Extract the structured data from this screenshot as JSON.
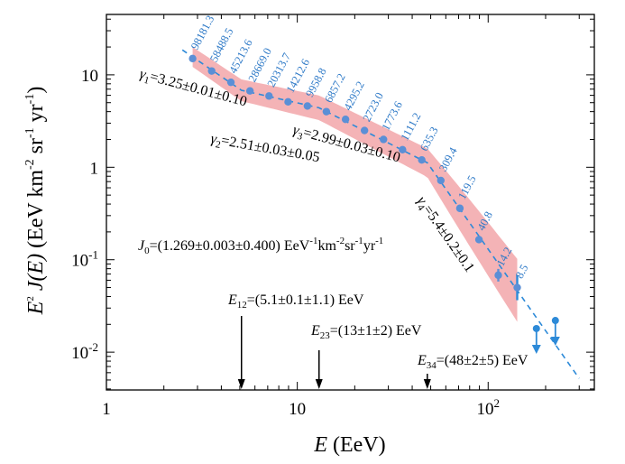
{
  "chart_data": {
    "type": "scatter",
    "xlabel": {
      "pre": "E",
      "unit": " (EeV)"
    },
    "ylabel": {
      "pre": "E",
      "exp": "2",
      "mid": " J(E)",
      "unit": " (EeV km",
      "e1": "-2",
      "u2": " sr",
      "e2": "-1",
      "u3": " yr",
      "e3": "-1",
      "close": ")"
    },
    "x_scale": "log",
    "y_scale": "log",
    "xlim": [
      1,
      360
    ],
    "ylim": [
      0.0039,
      45
    ],
    "x_ticks": [
      {
        "value": 1,
        "base": "1",
        "exp": ""
      },
      {
        "value": 10,
        "base": "10",
        "exp": ""
      },
      {
        "value": 100,
        "base": "10",
        "exp": "2"
      }
    ],
    "y_ticks": [
      {
        "value": 0.01,
        "base": "10",
        "exp": "-2"
      },
      {
        "value": 0.1,
        "base": "10",
        "exp": "-1"
      },
      {
        "value": 1,
        "base": "1",
        "exp": ""
      },
      {
        "value": 10,
        "base": "10",
        "exp": ""
      }
    ],
    "grid": false,
    "series": [
      {
        "kind": "points",
        "color": "#5b8fd6",
        "points": [
          {
            "x": 2.83,
            "y": 15.0,
            "label": "98181.3"
          },
          {
            "x": 3.56,
            "y": 11.0,
            "label": "58488.5"
          },
          {
            "x": 4.49,
            "y": 8.3,
            "label": "45213.6"
          },
          {
            "x": 5.65,
            "y": 6.7,
            "label": "28669.0"
          },
          {
            "x": 7.11,
            "y": 5.9,
            "label": "20313.7"
          },
          {
            "x": 8.95,
            "y": 5.1,
            "label": "14212.6"
          },
          {
            "x": 11.3,
            "y": 4.6,
            "label": "9958.8"
          },
          {
            "x": 14.2,
            "y": 4.0,
            "label": "6857.2"
          },
          {
            "x": 17.9,
            "y": 3.3,
            "label": "4295.2"
          },
          {
            "x": 22.5,
            "y": 2.5,
            "label": "2723.0"
          },
          {
            "x": 28.3,
            "y": 2.0,
            "label": "1773.6"
          },
          {
            "x": 35.6,
            "y": 1.55,
            "label": "1111.2"
          },
          {
            "x": 44.9,
            "y": 1.2,
            "label": "635.3"
          },
          {
            "x": 56.5,
            "y": 0.72,
            "label": "309.4"
          },
          {
            "x": 71.1,
            "y": 0.36,
            "label": "119.5"
          },
          {
            "x": 89.5,
            "y": 0.165,
            "label": "40.8"
          },
          {
            "x": 113,
            "y": 0.068,
            "label": "14.2"
          },
          {
            "x": 142,
            "y": 0.05,
            "label": "8.5"
          }
        ]
      },
      {
        "kind": "upper_limits",
        "color": "#2d8ad8",
        "points": [
          {
            "x": 179,
            "y": 0.018
          },
          {
            "x": 225,
            "y": 0.022
          }
        ]
      },
      {
        "kind": "fit",
        "style": "dashed",
        "color": "#2d8ad8",
        "break_points": [
          [
            2.5,
            18.6
          ],
          [
            5.1,
            6.8
          ],
          [
            13.0,
            4.4
          ],
          [
            48.0,
            1.12
          ],
          [
            300,
            0.0052
          ]
        ]
      },
      {
        "kind": "band",
        "color": "#f4b3b6",
        "x_range": [
          2.83,
          142
        ]
      }
    ],
    "annotations": {
      "gamma1": {
        "g": "γ",
        "sub": "1",
        "text": "=3.25±0.01±0.10"
      },
      "gamma2": {
        "g": "γ",
        "sub": "2",
        "text": "=2.51±0.03±0.05"
      },
      "gamma3": {
        "g": "γ",
        "sub": "3",
        "text": "=2.99±0.03±0.10"
      },
      "gamma4": {
        "g": "γ",
        "sub": "4",
        "text": "=5.4±0.2±0.1"
      },
      "j0": {
        "g": "J",
        "sub": "0",
        "t1": "=(1.269±0.003±0.400) EeV",
        "e1": "-1",
        "t2": "km",
        "e2": "-2",
        "t3": "sr",
        "e3": "-1",
        "t4": "yr",
        "e4": "-1"
      },
      "e12": {
        "g": "E",
        "sub": "12",
        "text": "=(5.1±0.1±1.1) EeV",
        "x": 5.1
      },
      "e23": {
        "g": "E",
        "sub": "23",
        "text": "=(13±1±2) EeV",
        "x": 13
      },
      "e34": {
        "g": "E",
        "sub": "34",
        "text": "=(48±2±5) EeV",
        "x": 48
      }
    }
  }
}
